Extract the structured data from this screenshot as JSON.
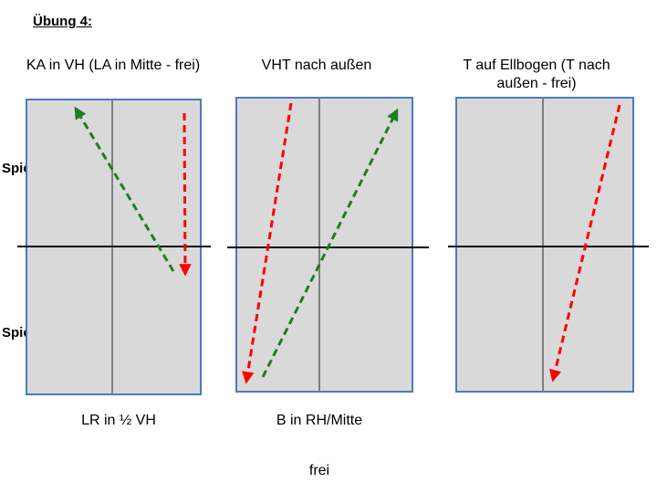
{
  "title": "Übung 4:",
  "players": {
    "a": "Spieler A",
    "b": "Spieler B"
  },
  "drills": [
    {
      "top_label": "KA in VH (LA in Mitte - frei)",
      "bottom_label": "LR in ½ VH"
    },
    {
      "top_label": "VHT nach außen",
      "bottom_label": "B in RH/Mitte"
    },
    {
      "top_label": "T auf Ellbogen (T nach außen - frei)",
      "bottom_label": ""
    }
  ],
  "footer": "frei",
  "colors": {
    "table_fill": "#d9d9d9",
    "table_border": "#4a7bbf",
    "center_line": "#7f7f7f",
    "net": "#000000",
    "red_arrow": "#ff0000",
    "green_arrow": "#1f7f1f"
  }
}
